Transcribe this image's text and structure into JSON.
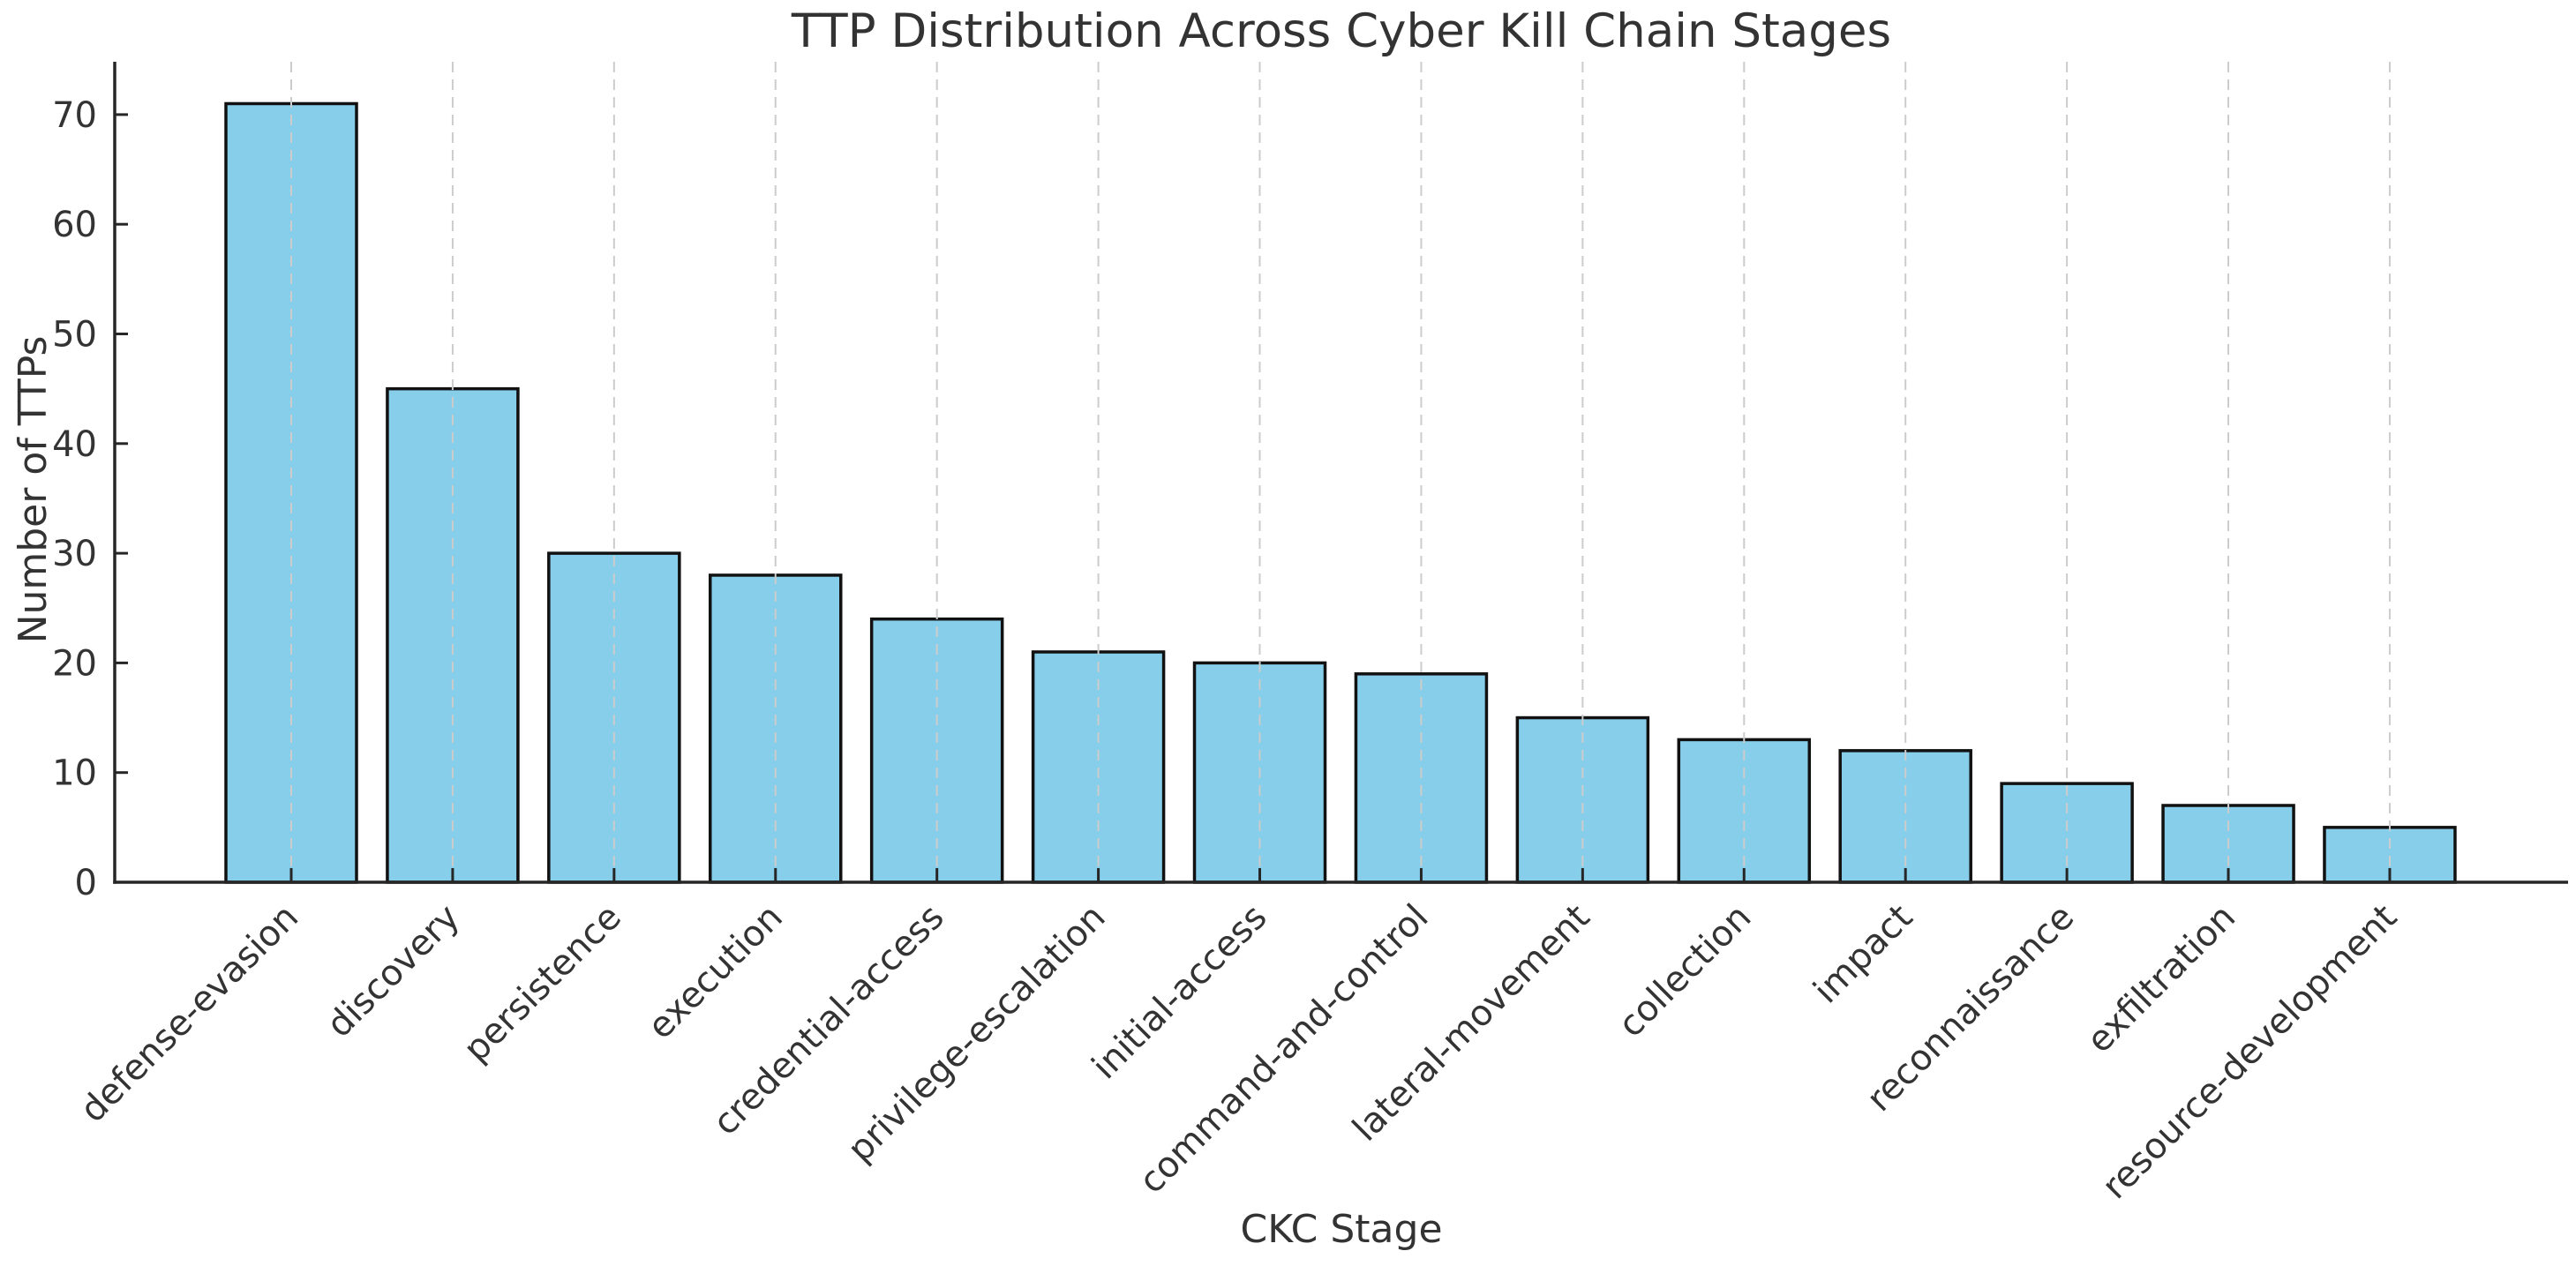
{
  "figure": {
    "background": "#ffffff"
  },
  "chart_data": {
    "type": "bar",
    "title": "TTP Distribution Across Cyber Kill Chain Stages",
    "xlabel": "CKC Stage",
    "ylabel": "Number of TTPs",
    "categories": [
      "defense-evasion",
      "discovery",
      "persistence",
      "execution",
      "credential-access",
      "privilege-escalation",
      "initial-access",
      "command-and-control",
      "lateral-movement",
      "collection",
      "impact",
      "reconnaissance",
      "exfiltration",
      "resource-development"
    ],
    "values": [
      71,
      45,
      30,
      28,
      24,
      21,
      20,
      19,
      15,
      13,
      12,
      9,
      7,
      5
    ],
    "yticks": [
      0,
      10,
      20,
      30,
      40,
      50,
      60,
      70
    ],
    "ylim": [
      0,
      74.8
    ],
    "grid": "vertical-dashed",
    "legend": "none",
    "x_tick_rotation_deg": 45,
    "colors": {
      "bar_fill": "#87CEEB",
      "bar_edge": "#111111",
      "grid": "#cccccc",
      "axis": "#262626",
      "text": "#333333"
    }
  }
}
